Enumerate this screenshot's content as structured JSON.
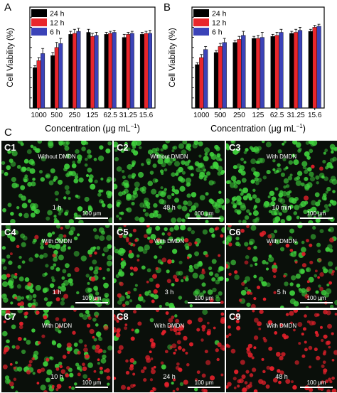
{
  "panels": {
    "a": "A",
    "b": "B",
    "c": "C"
  },
  "colors": {
    "h24": "#000000",
    "h12": "#e8262b",
    "h6": "#3b43b8",
    "green": "#3fd13c",
    "red": "#e0202a"
  },
  "chart_data": [
    {
      "type": "bar",
      "panel": "A",
      "categories": [
        "1000",
        "500",
        "250",
        "125",
        "62.5",
        "31.25",
        "15.6"
      ],
      "series": [
        {
          "name": "24 h",
          "values": [
            40,
            52,
            73,
            75,
            73,
            70,
            73
          ]
        },
        {
          "name": "12 h",
          "values": [
            47,
            60,
            74,
            71,
            74,
            73,
            74
          ]
        },
        {
          "name": "6 h",
          "values": [
            54,
            64,
            76,
            72,
            75,
            74,
            74
          ]
        }
      ],
      "errors": [
        [
          2,
          3,
          3,
          3,
          2,
          3,
          2
        ],
        [
          3,
          5,
          4,
          3,
          2,
          2,
          2
        ],
        [
          5,
          5,
          3,
          3,
          2,
          2,
          3
        ]
      ],
      "ylabel": "Cell Viability (%)",
      "xlabel_prefix": "Concentration (μg mL",
      "xlabel_sup": "−1",
      "xlabel_suffix": ")",
      "ylim": [
        0,
        100
      ],
      "legend": "top-left"
    },
    {
      "type": "bar",
      "panel": "B",
      "categories": [
        "1000",
        "500",
        "250",
        "125",
        "62.5",
        "31.25",
        "15.6"
      ],
      "series": [
        {
          "name": "24 h",
          "values": [
            43,
            55,
            65,
            69,
            71,
            74,
            76
          ]
        },
        {
          "name": "12 h",
          "values": [
            50,
            61,
            68,
            69,
            72,
            75,
            80
          ]
        },
        {
          "name": "6 h",
          "values": [
            58,
            65,
            72,
            70,
            75,
            77,
            81
          ]
        }
      ],
      "errors": [
        [
          2,
          2,
          2,
          2,
          2,
          2,
          2
        ],
        [
          3,
          3,
          3,
          3,
          3,
          3,
          2
        ],
        [
          3,
          4,
          4,
          5,
          3,
          3,
          2
        ]
      ],
      "ylabel": "Cell Viability (%)",
      "xlabel_prefix": "Concentration (μg mL",
      "xlabel_sup": "−1",
      "xlabel_suffix": ")",
      "ylim": [
        0,
        100
      ],
      "legend": "top-left"
    }
  ],
  "micrographs": [
    {
      "label": "C1",
      "condition": "Without DMDN",
      "time": "1 h",
      "scale": "100  μm",
      "green_density": 0.6,
      "red_density": 0.0
    },
    {
      "label": "C2",
      "condition": "Without DMDN",
      "time": "48 h",
      "scale": "100  μm",
      "green_density": 0.9,
      "red_density": 0.0
    },
    {
      "label": "C3",
      "condition": "With DMDN",
      "time": "10 min",
      "scale": "100  μm",
      "green_density": 0.85,
      "red_density": 0.02
    },
    {
      "label": "C4",
      "condition": "With DMDN",
      "time": "1 h",
      "scale": "100  μm",
      "green_density": 0.6,
      "red_density": 0.15
    },
    {
      "label": "C5",
      "condition": "With DMDN",
      "time": "3 h",
      "scale": "100  μm",
      "green_density": 0.5,
      "red_density": 0.3
    },
    {
      "label": "C6",
      "condition": "With DMDN",
      "time": "5 h",
      "scale": "100  μm",
      "green_density": 0.4,
      "red_density": 0.3
    },
    {
      "label": "C7",
      "condition": "With DMDN",
      "time": "10 h",
      "scale": "100  μm",
      "green_density": 0.35,
      "red_density": 0.45
    },
    {
      "label": "C8",
      "condition": "With DMDN",
      "time": "24 h",
      "scale": "100  μm",
      "green_density": 0.05,
      "red_density": 0.7
    },
    {
      "label": "C9",
      "condition": "With DMDN",
      "time": "48 h",
      "scale": "100  μm",
      "green_density": 0.0,
      "red_density": 0.8
    }
  ]
}
